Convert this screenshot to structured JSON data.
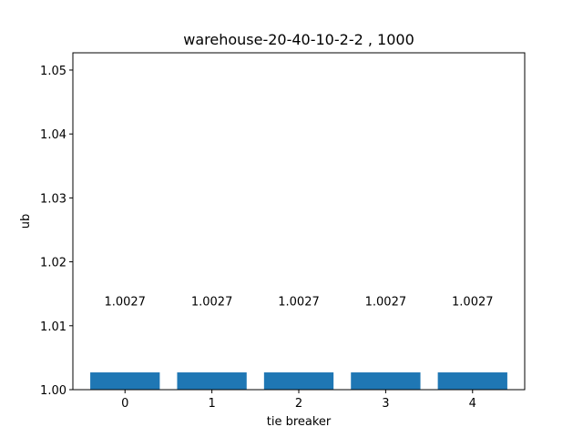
{
  "chart_data": {
    "type": "bar",
    "title": "warehouse-20-40-10-2-2 , 1000",
    "xlabel": "tie breaker",
    "ylabel": "ub",
    "categories": [
      "0",
      "1",
      "2",
      "3",
      "4"
    ],
    "values": [
      1.0027,
      1.0027,
      1.0027,
      1.0027,
      1.0027
    ],
    "value_labels": [
      "1.0027",
      "1.0027",
      "1.0027",
      "1.0027",
      "1.0027"
    ],
    "ylim": [
      1.0,
      1.0527
    ],
    "yticks": [
      1.0,
      1.01,
      1.02,
      1.03,
      1.04,
      1.05
    ],
    "ytick_labels": [
      "1.00",
      "1.01",
      "1.02",
      "1.03",
      "1.04",
      "1.05"
    ],
    "xlim": [
      -0.6,
      4.6
    ],
    "grid": false,
    "bar_color": "#1f77b4"
  }
}
